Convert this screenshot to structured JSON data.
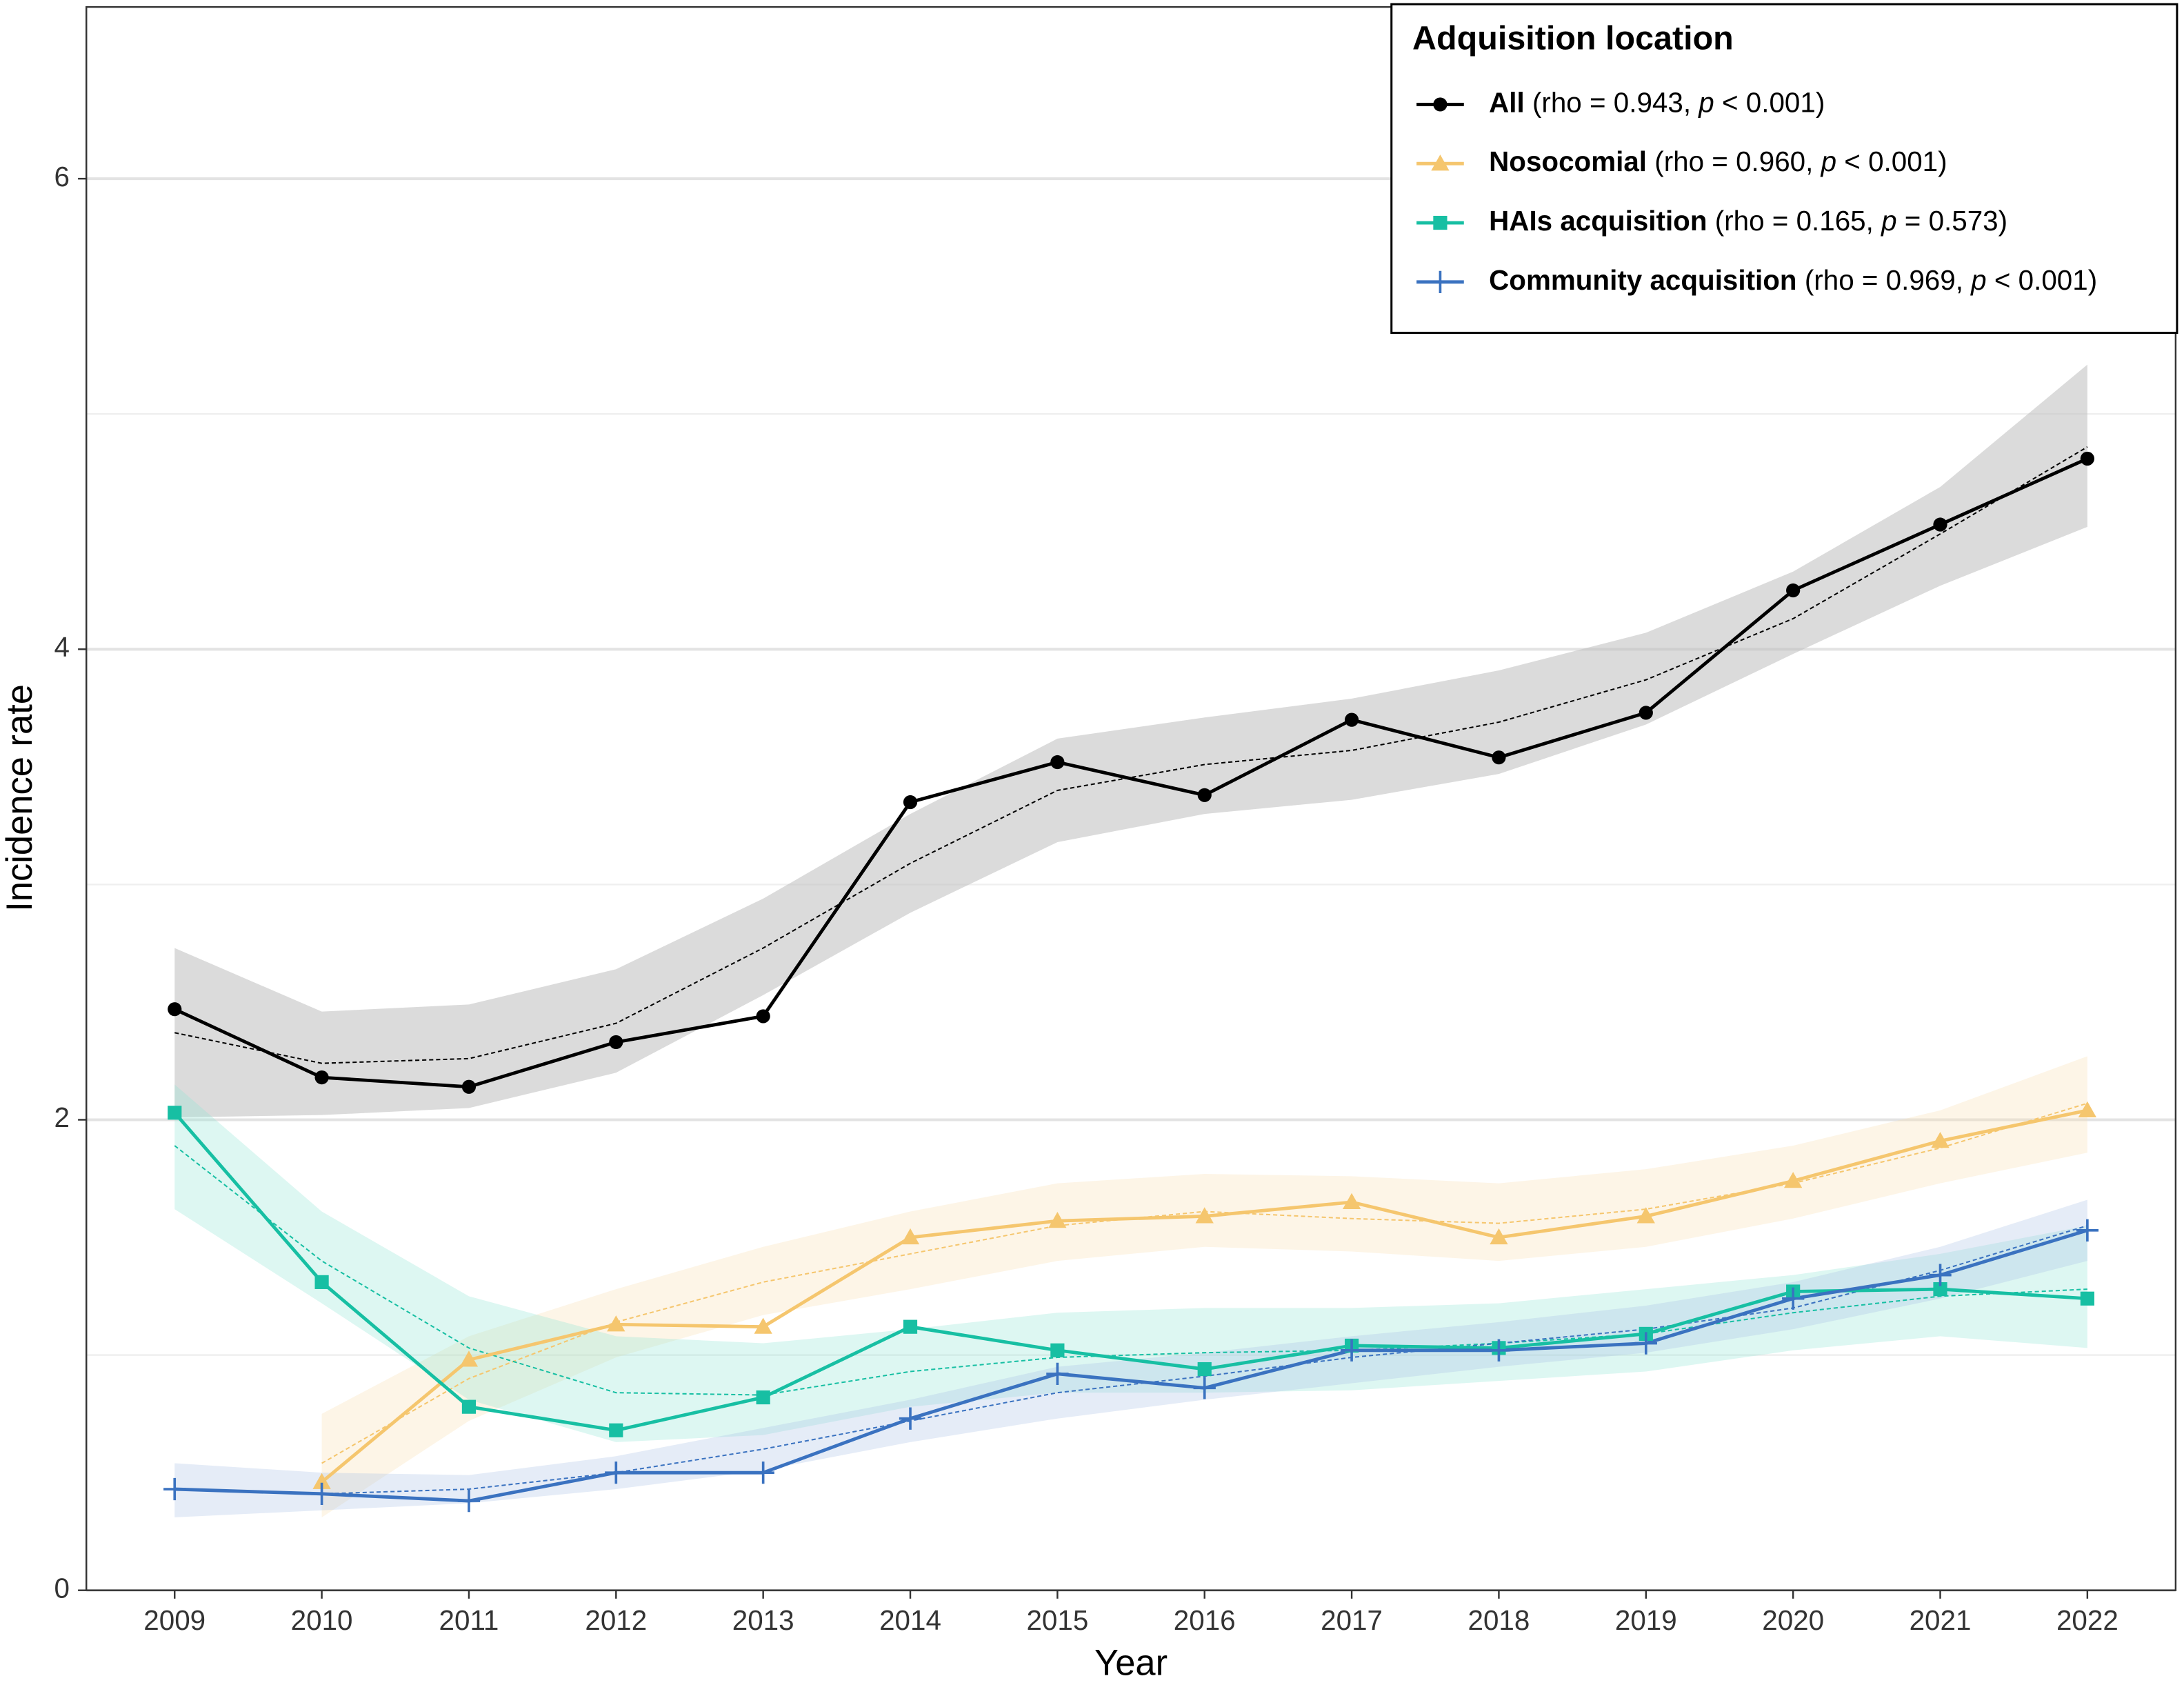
{
  "chart_data": {
    "type": "line",
    "x_label": "Year",
    "y_label": "Incidence rate",
    "x": [
      2009,
      2010,
      2011,
      2012,
      2013,
      2014,
      2015,
      2016,
      2017,
      2018,
      2019,
      2020,
      2021,
      2022
    ],
    "xlim": [
      2008.4,
      2022.6
    ],
    "xticks": [
      2009,
      2010,
      2011,
      2012,
      2013,
      2014,
      2015,
      2016,
      2017,
      2018,
      2019,
      2020,
      2021,
      2022
    ],
    "ylim": [
      0,
      6.73
    ],
    "yticks": [
      0,
      2,
      4,
      6
    ],
    "minor_yticks": [
      1,
      3,
      5
    ],
    "grid": true,
    "legend_title": "Adquisition location",
    "legend_position": "top-right",
    "series": [
      {
        "name": "All",
        "stat": [
          "(rho = 0.943, ",
          "p",
          " < 0.001)"
        ],
        "color": "#000000",
        "band_color": "#bdbdbd",
        "marker": "circle",
        "values": [
          2.47,
          2.18,
          2.14,
          2.33,
          2.44,
          3.35,
          3.52,
          3.38,
          3.7,
          3.54,
          3.73,
          4.25,
          4.53,
          4.81
        ],
        "trend": [
          2.37,
          2.24,
          2.26,
          2.41,
          2.73,
          3.09,
          3.4,
          3.51,
          3.57,
          3.69,
          3.87,
          4.13,
          4.49,
          4.86
        ],
        "lower": [
          2.01,
          2.02,
          2.05,
          2.2,
          2.53,
          2.88,
          3.18,
          3.3,
          3.36,
          3.47,
          3.68,
          3.98,
          4.27,
          4.52
        ],
        "upper": [
          2.73,
          2.46,
          2.49,
          2.64,
          2.94,
          3.3,
          3.62,
          3.71,
          3.79,
          3.91,
          4.07,
          4.33,
          4.69,
          5.21
        ]
      },
      {
        "name": "Nosocomial",
        "stat": [
          "(rho = 0.960, ",
          "p",
          " < 0.001)"
        ],
        "color": "#f5c66e",
        "band_color": "#f9dfae",
        "marker": "triangle",
        "values": [
          null,
          0.46,
          0.98,
          1.13,
          1.12,
          1.5,
          1.57,
          1.59,
          1.65,
          1.5,
          1.59,
          1.74,
          1.91,
          2.04
        ],
        "trend": [
          null,
          0.54,
          0.9,
          1.14,
          1.31,
          1.43,
          1.55,
          1.61,
          1.58,
          1.56,
          1.62,
          1.73,
          1.88,
          2.07
        ],
        "lower": [
          null,
          0.31,
          0.72,
          0.99,
          1.17,
          1.28,
          1.4,
          1.46,
          1.44,
          1.4,
          1.46,
          1.58,
          1.73,
          1.86
        ],
        "upper": [
          null,
          0.75,
          1.08,
          1.28,
          1.46,
          1.61,
          1.73,
          1.77,
          1.76,
          1.73,
          1.79,
          1.89,
          2.04,
          2.27
        ]
      },
      {
        "name": "HAIs acquisition",
        "stat": [
          "(rho = 0.165, ",
          "p",
          " = 0.573)"
        ],
        "color": "#17bfa3",
        "band_color": "#8fe3d3",
        "marker": "square",
        "values": [
          2.03,
          1.31,
          0.78,
          0.68,
          0.82,
          1.12,
          1.02,
          0.94,
          1.04,
          1.03,
          1.09,
          1.27,
          1.28,
          1.24
        ],
        "trend": [
          1.89,
          1.4,
          1.03,
          0.84,
          0.83,
          0.93,
          0.99,
          1.01,
          1.02,
          1.05,
          1.09,
          1.18,
          1.25,
          1.28
        ],
        "lower": [
          1.62,
          1.22,
          0.81,
          0.63,
          0.66,
          0.78,
          0.84,
          0.84,
          0.85,
          0.89,
          0.93,
          1.02,
          1.08,
          1.03
        ],
        "upper": [
          2.15,
          1.61,
          1.25,
          1.08,
          1.05,
          1.11,
          1.18,
          1.2,
          1.2,
          1.22,
          1.28,
          1.34,
          1.43,
          1.55
        ]
      },
      {
        "name": "Community acquisition",
        "stat": [
          "(rho = 0.969, ",
          "p",
          " < 0.001)"
        ],
        "color": "#3a72c0",
        "band_color": "#aabfe6",
        "marker": "plus",
        "values": [
          0.43,
          0.41,
          0.38,
          0.5,
          0.5,
          0.73,
          0.92,
          0.86,
          1.02,
          1.02,
          1.05,
          1.24,
          1.34,
          1.53
        ],
        "trend": [
          0.43,
          0.41,
          0.43,
          0.5,
          0.6,
          0.72,
          0.84,
          0.91,
          0.99,
          1.05,
          1.11,
          1.2,
          1.36,
          1.55
        ],
        "lower": [
          0.31,
          0.34,
          0.37,
          0.43,
          0.51,
          0.63,
          0.73,
          0.81,
          0.88,
          0.95,
          1.01,
          1.11,
          1.24,
          1.4
        ],
        "upper": [
          0.54,
          0.5,
          0.49,
          0.57,
          0.69,
          0.81,
          0.95,
          1.01,
          1.08,
          1.14,
          1.21,
          1.31,
          1.46,
          1.66
        ]
      }
    ]
  }
}
